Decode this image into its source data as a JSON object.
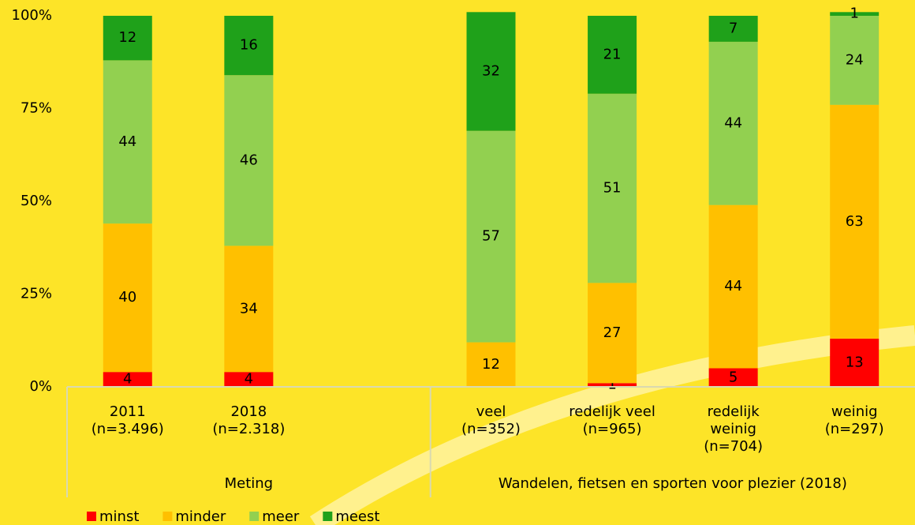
{
  "chart_data": {
    "type": "stacked_bar",
    "categories": [
      [
        "2011",
        "(n=3.496)"
      ],
      [
        "2018",
        "(n=2.318)"
      ],
      null,
      [
        "veel",
        "(n=352)"
      ],
      [
        "redelijk veel",
        "(n=965)"
      ],
      [
        "redelijk",
        "weinig",
        "(n=704)"
      ],
      [
        "weinig",
        "(n=297)"
      ]
    ],
    "groups": [
      {
        "label": "Meting"
      },
      {
        "label": "Wandelen, fietsen en sporten voor plezier (2018)"
      }
    ],
    "series": [
      {
        "name": "minst",
        "color": "#ff0000",
        "values": [
          4,
          4,
          null,
          null,
          1,
          5,
          13
        ]
      },
      {
        "name": "minder",
        "color": "#ffc000",
        "values": [
          40,
          34,
          null,
          12,
          27,
          44,
          63
        ]
      },
      {
        "name": "meer",
        "color": "#92d050",
        "values": [
          44,
          46,
          null,
          57,
          51,
          44,
          24
        ]
      },
      {
        "name": "meest",
        "color": "#1fa11a",
        "values": [
          12,
          16,
          null,
          32,
          21,
          7,
          1
        ]
      }
    ],
    "ylim": [
      0,
      100
    ],
    "yticks": [
      {
        "value": 0,
        "label": "0%"
      },
      {
        "value": 25,
        "label": "25%"
      },
      {
        "value": 50,
        "label": "50%"
      },
      {
        "value": 75,
        "label": "75%"
      },
      {
        "value": 100,
        "label": "100%"
      }
    ],
    "legend": "bottom-left"
  }
}
